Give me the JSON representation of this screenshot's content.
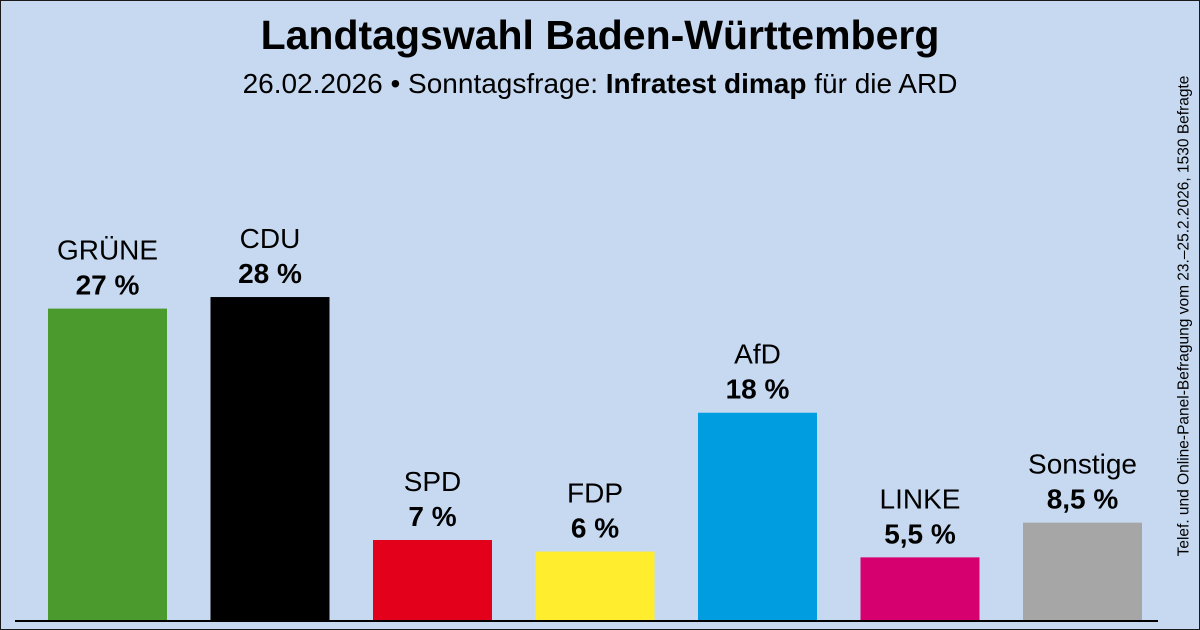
{
  "header": {
    "title": "Landtagswahl Baden-Württemberg",
    "subtitle_prefix": "26.02.2026 • Sonntagsfrage: ",
    "subtitle_institute": "Infratest dimap",
    "subtitle_suffix": " für die ARD"
  },
  "side_note": "Telef. und Online-Panel-Befragung vom 23.–25.2.2026, 1530 Befragte",
  "chart_data": {
    "type": "bar",
    "title": "Landtagswahl Baden-Württemberg",
    "subtitle": "26.02.2026 • Sonntagsfrage: Infratest dimap für die ARD",
    "categories": [
      "GRÜNE",
      "CDU",
      "SPD",
      "FDP",
      "AfD",
      "LINKE",
      "Sonstige"
    ],
    "values": [
      27,
      28,
      7,
      6,
      18,
      5.5,
      8.5
    ],
    "value_labels": [
      "27 %",
      "28 %",
      "7 %",
      "6 %",
      "18 %",
      "5,5 %",
      "8,5 %"
    ],
    "colors": [
      "#4a9a2e",
      "#000000",
      "#e3001b",
      "#ffed2e",
      "#009ee0",
      "#d6006e",
      "#a6a6a6"
    ],
    "ylim": [
      0,
      30
    ],
    "grid": false,
    "legend": "none"
  }
}
